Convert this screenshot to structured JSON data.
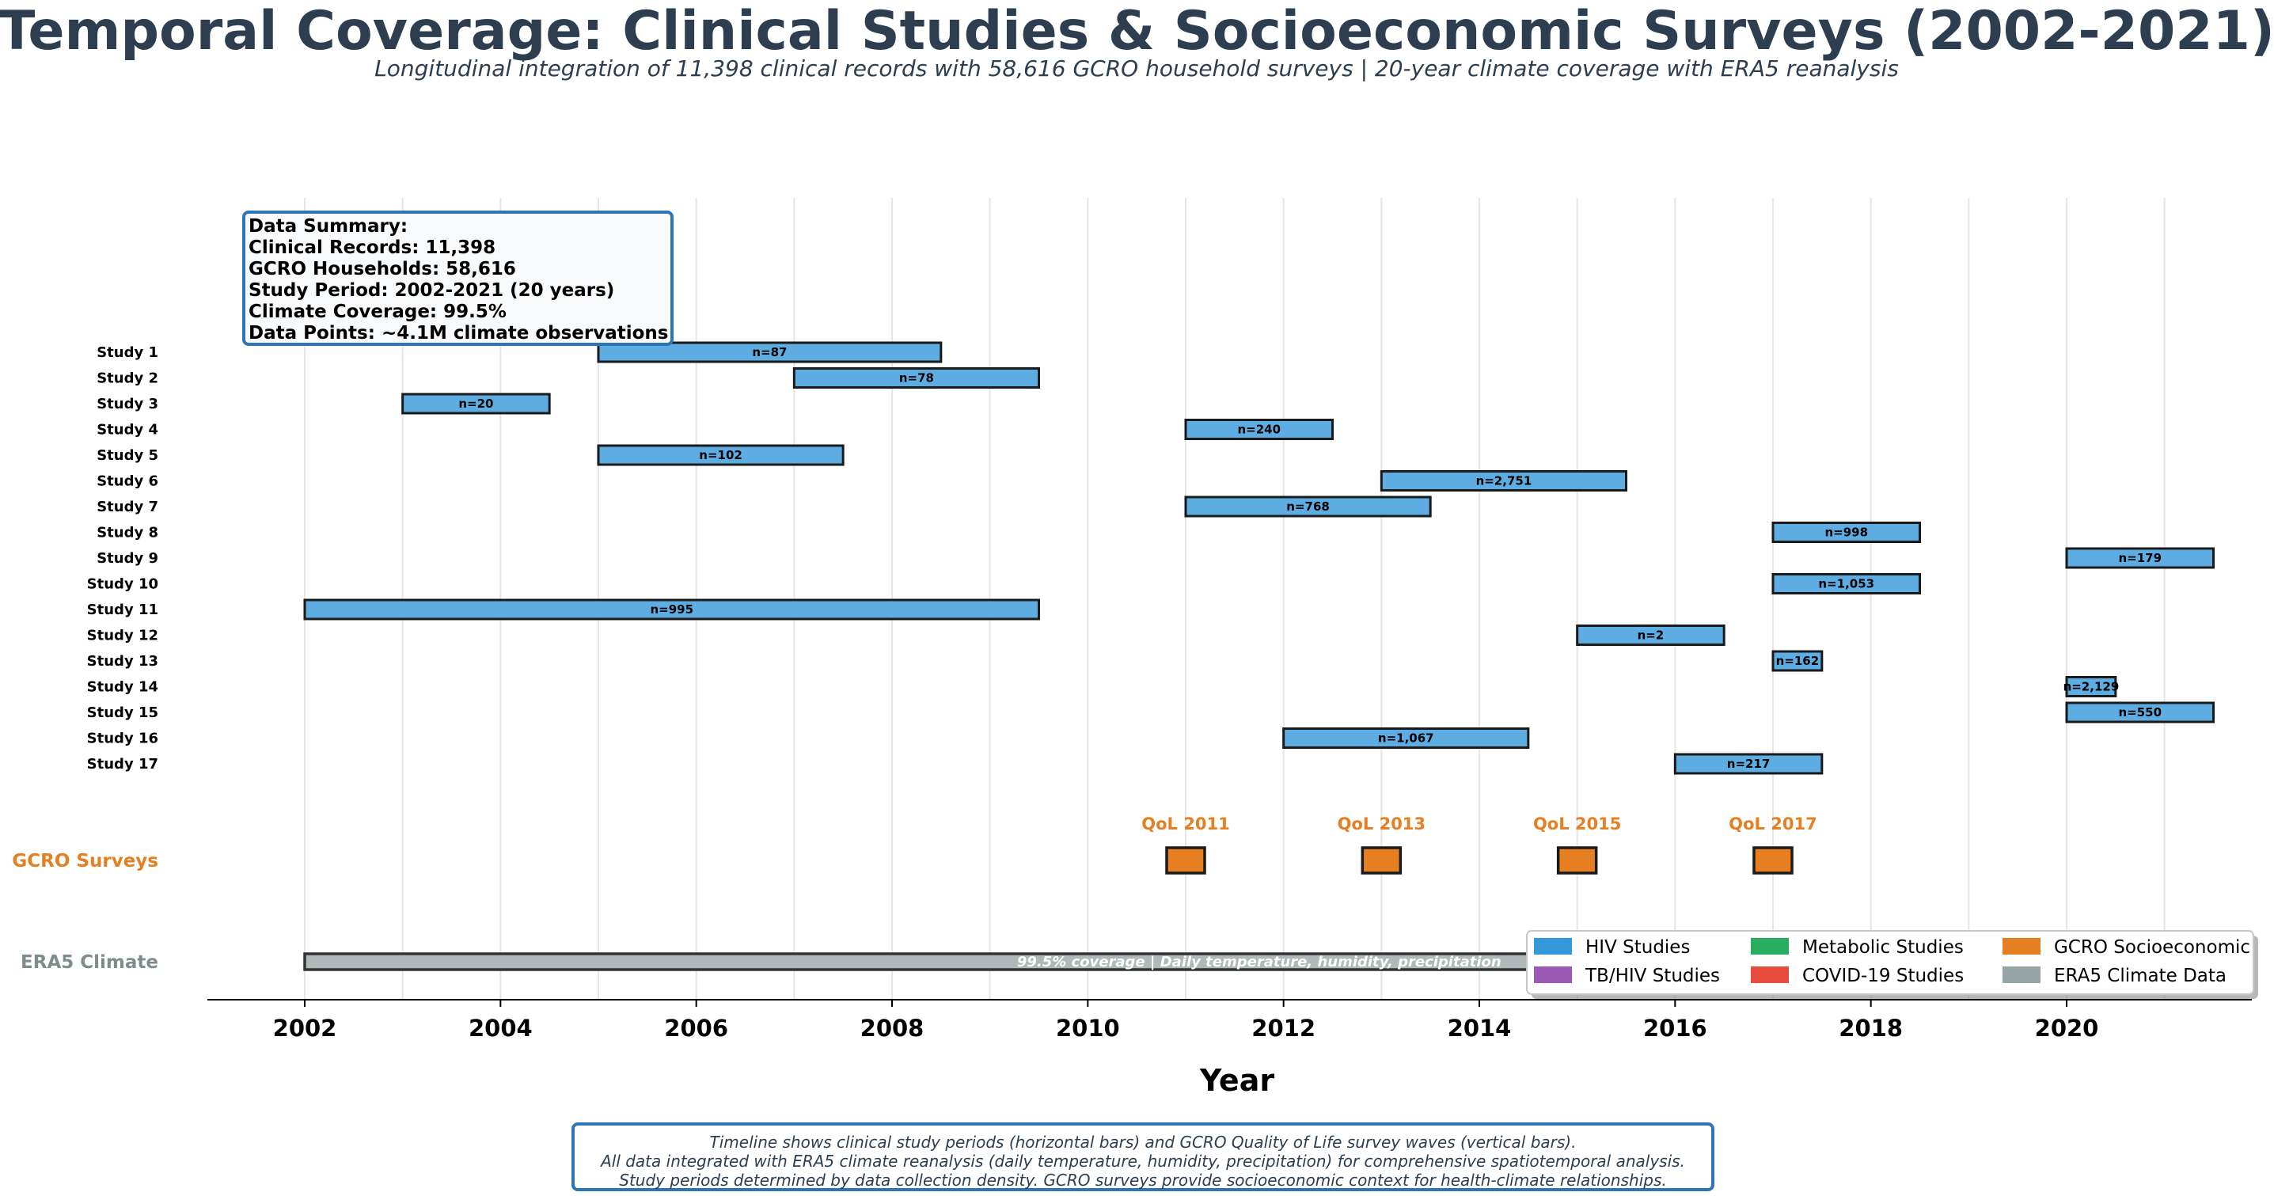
{
  "chart_data": {
    "type": "timeline",
    "title": "Temporal Coverage: Clinical Studies & Socioeconomic Surveys (2002-2021)",
    "subtitle": "Longitudinal integration of 11,398 clinical records with 58,616 GCRO household surveys | 20-year climate coverage with ERA5 reanalysis",
    "xlabel": "Year",
    "xlim": [
      2001.0,
      2021.6
    ],
    "x_ticks": [
      2002,
      2004,
      2006,
      2008,
      2010,
      2012,
      2014,
      2016,
      2018,
      2020
    ],
    "grid": "vertical, every year",
    "studies": [
      {
        "name": "Study 1",
        "start": 2005.0,
        "end": 2008.5,
        "label": "n=87"
      },
      {
        "name": "Study 2",
        "start": 2007.0,
        "end": 2009.5,
        "label": "n=78"
      },
      {
        "name": "Study 3",
        "start": 2003.0,
        "end": 2004.5,
        "label": "n=20"
      },
      {
        "name": "Study 4",
        "start": 2011.0,
        "end": 2012.5,
        "label": "n=240"
      },
      {
        "name": "Study 5",
        "start": 2005.0,
        "end": 2007.5,
        "label": "n=102"
      },
      {
        "name": "Study 6",
        "start": 2013.0,
        "end": 2015.5,
        "label": "n=2,751"
      },
      {
        "name": "Study 7",
        "start": 2011.0,
        "end": 2013.5,
        "label": "n=768"
      },
      {
        "name": "Study 8",
        "start": 2017.0,
        "end": 2018.5,
        "label": "n=998"
      },
      {
        "name": "Study 9",
        "start": 2020.0,
        "end": 2021.5,
        "label": "n=179"
      },
      {
        "name": "Study 10",
        "start": 2017.0,
        "end": 2018.5,
        "label": "n=1,053"
      },
      {
        "name": "Study 11",
        "start": 2002.0,
        "end": 2009.5,
        "label": "n=995"
      },
      {
        "name": "Study 12",
        "start": 2015.0,
        "end": 2016.5,
        "label": "n=2"
      },
      {
        "name": "Study 13",
        "start": 2017.0,
        "end": 2017.5,
        "label": "n=162"
      },
      {
        "name": "Study 14",
        "start": 2020.0,
        "end": 2020.5,
        "label": "n=2,129"
      },
      {
        "name": "Study 15",
        "start": 2020.0,
        "end": 2021.5,
        "label": "n=550"
      },
      {
        "name": "Study 16",
        "start": 2012.0,
        "end": 2014.5,
        "label": "n=1,067"
      },
      {
        "name": "Study 17",
        "start": 2016.0,
        "end": 2017.5,
        "label": "n=217"
      }
    ],
    "gcro": {
      "row_label": "GCRO Surveys",
      "waves": [
        {
          "label": "QoL 2011",
          "year": 2011
        },
        {
          "label": "QoL 2013",
          "year": 2013
        },
        {
          "label": "QoL 2015",
          "year": 2015
        },
        {
          "label": "QoL 2017",
          "year": 2017
        }
      ]
    },
    "era5": {
      "row_label": "ERA5 Climate",
      "start": 2002.0,
      "end": 2021.5,
      "note": "99.5% coverage | Daily temperature, humidity, precipitation"
    },
    "colors": {
      "hiv": "#5dade2",
      "gcro": "#e67e22",
      "era5": "#b0b8b9",
      "title": "#2c3e50",
      "box_border": "#2e75b6"
    },
    "summary_box": [
      "Data Summary:",
      "Clinical Records: 11,398",
      "GCRO Households: 58,616",
      "Study Period: 2002-2021 (20 years)",
      "Climate Coverage: 99.5%",
      "Data Points: ~4.1M climate observations"
    ],
    "legend": {
      "placement": "lower-right",
      "items": [
        {
          "label": "HIV Studies",
          "color": "#3498db"
        },
        {
          "label": "Metabolic Studies",
          "color": "#27ae60"
        },
        {
          "label": "GCRO Socioeconomic",
          "color": "#e67e22"
        },
        {
          "label": "TB/HIV Studies",
          "color": "#9b59b6"
        },
        {
          "label": "COVID-19 Studies",
          "color": "#e74c3c"
        },
        {
          "label": "ERA5 Climate Data",
          "color": "#95a5a6"
        }
      ]
    },
    "footnote": [
      "Timeline shows clinical study periods (horizontal bars) and GCRO Quality of Life survey waves (vertical bars).",
      "All data integrated with ERA5 climate reanalysis (daily temperature, humidity, precipitation) for comprehensive spatiotemporal analysis.",
      "Study periods determined by data collection density. GCRO surveys provide socioeconomic context for health-climate relationships."
    ]
  }
}
